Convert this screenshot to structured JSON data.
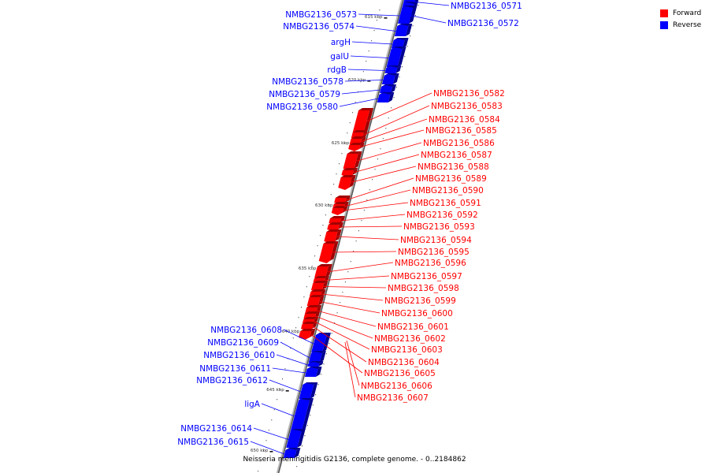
{
  "legend": {
    "forward": {
      "label": "Forward",
      "color": "#ff0000"
    },
    "reverse": {
      "label": "Reverse",
      "color": "#0000ff"
    }
  },
  "caption": "Neisseria meningitidis G2136, complete genome. - 0..2184862",
  "ticks": [
    "615 kbp",
    "620 kbp",
    "625 kbp",
    "630 kbp",
    "635 kbp",
    "640 kbp",
    "645 kbp",
    "650 kbp"
  ],
  "genes": [
    {
      "name": "NMBG2136_0571",
      "strand": "reverse"
    },
    {
      "name": "NMBG2136_0572",
      "strand": "reverse"
    },
    {
      "name": "NMBG2136_0573",
      "strand": "reverse"
    },
    {
      "name": "NMBG2136_0574",
      "strand": "reverse"
    },
    {
      "name": "argH",
      "strand": "reverse"
    },
    {
      "name": "galU",
      "strand": "reverse"
    },
    {
      "name": "rdgB",
      "strand": "reverse"
    },
    {
      "name": "NMBG2136_0578",
      "strand": "reverse"
    },
    {
      "name": "NMBG2136_0579",
      "strand": "reverse"
    },
    {
      "name": "NMBG2136_0580",
      "strand": "reverse"
    },
    {
      "name": "NMBG2136_0582",
      "strand": "forward"
    },
    {
      "name": "NMBG2136_0583",
      "strand": "forward"
    },
    {
      "name": "NMBG2136_0584",
      "strand": "forward"
    },
    {
      "name": "NMBG2136_0585",
      "strand": "forward"
    },
    {
      "name": "NMBG2136_0586",
      "strand": "forward"
    },
    {
      "name": "NMBG2136_0587",
      "strand": "forward"
    },
    {
      "name": "NMBG2136_0588",
      "strand": "forward"
    },
    {
      "name": "NMBG2136_0589",
      "strand": "forward"
    },
    {
      "name": "NMBG2136_0590",
      "strand": "forward"
    },
    {
      "name": "NMBG2136_0591",
      "strand": "forward"
    },
    {
      "name": "NMBG2136_0592",
      "strand": "forward"
    },
    {
      "name": "NMBG2136_0593",
      "strand": "forward"
    },
    {
      "name": "NMBG2136_0594",
      "strand": "forward"
    },
    {
      "name": "NMBG2136_0595",
      "strand": "forward"
    },
    {
      "name": "NMBG2136_0596",
      "strand": "forward"
    },
    {
      "name": "NMBG2136_0597",
      "strand": "forward"
    },
    {
      "name": "NMBG2136_0598",
      "strand": "forward"
    },
    {
      "name": "NMBG2136_0599",
      "strand": "forward"
    },
    {
      "name": "NMBG2136_0600",
      "strand": "forward"
    },
    {
      "name": "NMBG2136_0601",
      "strand": "forward"
    },
    {
      "name": "NMBG2136_0602",
      "strand": "forward"
    },
    {
      "name": "NMBG2136_0603",
      "strand": "forward"
    },
    {
      "name": "NMBG2136_0604",
      "strand": "forward"
    },
    {
      "name": "NMBG2136_0605",
      "strand": "forward"
    },
    {
      "name": "NMBG2136_0606",
      "strand": "forward"
    },
    {
      "name": "NMBG2136_0607",
      "strand": "forward"
    },
    {
      "name": "NMBG2136_0608",
      "strand": "reverse"
    },
    {
      "name": "NMBG2136_0609",
      "strand": "reverse"
    },
    {
      "name": "NMBG2136_0610",
      "strand": "reverse"
    },
    {
      "name": "NMBG2136_0611",
      "strand": "reverse"
    },
    {
      "name": "NMBG2136_0612",
      "strand": "reverse"
    },
    {
      "name": "ligA",
      "strand": "reverse"
    },
    {
      "name": "NMBG2136_0614",
      "strand": "reverse"
    },
    {
      "name": "NMBG2136_0615",
      "strand": "reverse"
    }
  ]
}
